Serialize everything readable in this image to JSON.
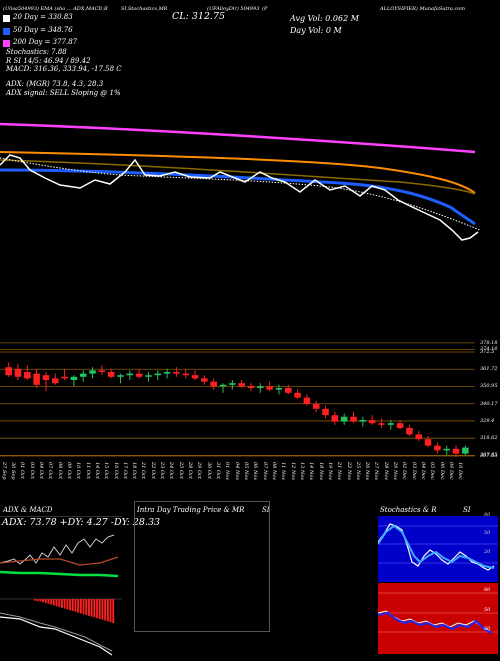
{
  "header": {
    "row1": "MunafaSutra ... ",
    "left_top": "(Ulisa504993) EMA (sho ... ADX,MACD,R",
    "mid_top": "SI,Stochastics,MR",
    "symbol_top": "(UFAlloyDir) 504993",
    "right_top": "(P",
    "far_right_top": "ALLOYSIFIER) MunafaSutra.com",
    "cl": "CL: 312.75",
    "avg_vol": "Avg Vol: 0.062  M",
    "day_vol": "Day Vol: 0   M",
    "ema20": "20  Day = 330.83",
    "ema50": "50  Day = 348.76",
    "ema200": "200  Day = 377.87",
    "stochastics": "Stochastics: 7.88",
    "rsi": "R         SI 14/5: 46.94 / 89.42",
    "macd": "MACD: 316.36, 333.94, -17.58  C",
    "adx": "ADX:                  (MGR) 73.8, 4.3, 28.3",
    "adx_signal": "ADX  signal: SELL Sloping @ 1%"
  },
  "colors": {
    "ema20": "#ffffff",
    "ema50": "#1e5eff",
    "ema100": "#ff8c00",
    "ema200": "#ff40ff",
    "up": "#22c55e",
    "down": "#ff2020",
    "level": "#8a5a00"
  },
  "price_levels": [
    "378.18",
    "374.16",
    "372.5",
    "361.72",
    "350.95",
    "340.17",
    "329.4",
    "318.62",
    "307.85",
    "307.53"
  ],
  "dates": [
    "27 Sep",
    "30 Sep",
    "01 Oct",
    "03 Oct",
    "04 Oct",
    "07 Oct",
    "08 Oct",
    "09 Oct",
    "10 Oct",
    "11 Oct",
    "14 Oct",
    "15 Oct",
    "16 Oct",
    "17 Oct",
    "18 Oct",
    "21 Oct",
    "22 Oct",
    "23 Oct",
    "24 Oct",
    "25 Oct",
    "28 Oct",
    "29 Oct",
    "30 Oct",
    "31 Oct",
    "01 Nov",
    "04 Nov",
    "05 Nov",
    "06 Nov",
    "07 Nov",
    "08 Nov",
    "11 Nov",
    "12 Nov",
    "13 Nov",
    "14 Nov",
    "18 Nov",
    "19 Nov",
    "21 Nov",
    "22 Nov",
    "25 Nov",
    "26 Nov",
    "27 Nov",
    "28 Nov",
    "29 Nov",
    "02 Dec",
    "03 Dec",
    "04 Dec",
    "05 Dec",
    "06 Dec",
    "09 Dec",
    "10 Dec"
  ],
  "panels": {
    "adx_title": "ADX  & MACD",
    "adx_values": "ADX: 73.78  +DY: 4.27  -DY: 28.33",
    "intra_title": "Intra  Day Trading Price  & MR",
    "intra_suffix": "SI",
    "stoch_title": "Stochastics & R",
    "stoch_suffix": "SI",
    "stoch_ticks": [
      "80",
      "50",
      "20"
    ],
    "rsi_ticks": [
      "80",
      "50",
      "20"
    ]
  },
  "chart_data": {
    "type": "candlestick",
    "ylim": [
      305,
      380
    ],
    "candles": [
      {
        "o": 363,
        "h": 366,
        "l": 357,
        "c": 358
      },
      {
        "o": 362,
        "h": 365,
        "l": 355,
        "c": 357
      },
      {
        "o": 360,
        "h": 364,
        "l": 355,
        "c": 356
      },
      {
        "o": 359,
        "h": 362,
        "l": 350,
        "c": 352
      },
      {
        "o": 358,
        "h": 360,
        "l": 348,
        "c": 355
      },
      {
        "o": 356,
        "h": 359,
        "l": 352,
        "c": 353
      },
      {
        "o": 357,
        "h": 362,
        "l": 355,
        "c": 356
      },
      {
        "o": 355,
        "h": 358,
        "l": 351,
        "c": 357
      },
      {
        "o": 357,
        "h": 361,
        "l": 354,
        "c": 359
      },
      {
        "o": 359,
        "h": 363,
        "l": 356,
        "c": 361
      },
      {
        "o": 361,
        "h": 364,
        "l": 358,
        "c": 360
      },
      {
        "o": 360,
        "h": 362,
        "l": 356,
        "c": 357
      },
      {
        "o": 357,
        "h": 359,
        "l": 353,
        "c": 358
      },
      {
        "o": 358,
        "h": 361,
        "l": 355,
        "c": 359
      },
      {
        "o": 359,
        "h": 362,
        "l": 356,
        "c": 357
      },
      {
        "o": 357,
        "h": 360,
        "l": 354,
        "c": 358
      },
      {
        "o": 358,
        "h": 361,
        "l": 355,
        "c": 359
      },
      {
        "o": 359,
        "h": 362,
        "l": 356,
        "c": 360
      },
      {
        "o": 360,
        "h": 363,
        "l": 357,
        "c": 359
      },
      {
        "o": 359,
        "h": 362,
        "l": 356,
        "c": 358
      },
      {
        "o": 358,
        "h": 361,
        "l": 355,
        "c": 356
      },
      {
        "o": 356,
        "h": 358,
        "l": 352,
        "c": 354
      },
      {
        "o": 354,
        "h": 356,
        "l": 349,
        "c": 351
      },
      {
        "o": 351,
        "h": 353,
        "l": 347,
        "c": 352
      },
      {
        "o": 352,
        "h": 355,
        "l": 349,
        "c": 353
      },
      {
        "o": 353,
        "h": 355,
        "l": 350,
        "c": 351
      },
      {
        "o": 351,
        "h": 353,
        "l": 348,
        "c": 350
      },
      {
        "o": 350,
        "h": 353,
        "l": 347,
        "c": 351
      },
      {
        "o": 351,
        "h": 354,
        "l": 348,
        "c": 349
      },
      {
        "o": 349,
        "h": 352,
        "l": 346,
        "c": 350
      },
      {
        "o": 350,
        "h": 352,
        "l": 346,
        "c": 347
      },
      {
        "o": 347,
        "h": 349,
        "l": 343,
        "c": 344
      },
      {
        "o": 344,
        "h": 346,
        "l": 339,
        "c": 340
      },
      {
        "o": 340,
        "h": 342,
        "l": 335,
        "c": 337
      },
      {
        "o": 337,
        "h": 339,
        "l": 331,
        "c": 333
      },
      {
        "o": 333,
        "h": 335,
        "l": 327,
        "c": 329
      },
      {
        "o": 329,
        "h": 334,
        "l": 327,
        "c": 332
      },
      {
        "o": 332,
        "h": 335,
        "l": 328,
        "c": 329
      },
      {
        "o": 329,
        "h": 332,
        "l": 326,
        "c": 330
      },
      {
        "o": 330,
        "h": 333,
        "l": 327,
        "c": 328
      },
      {
        "o": 328,
        "h": 331,
        "l": 325,
        "c": 327
      },
      {
        "o": 327,
        "h": 330,
        "l": 324,
        "c": 328
      },
      {
        "o": 328,
        "h": 330,
        "l": 324,
        "c": 325
      },
      {
        "o": 325,
        "h": 327,
        "l": 320,
        "c": 321
      },
      {
        "o": 321,
        "h": 323,
        "l": 317,
        "c": 318
      },
      {
        "o": 318,
        "h": 320,
        "l": 313,
        "c": 314
      },
      {
        "o": 314,
        "h": 316,
        "l": 309,
        "c": 311
      },
      {
        "o": 311,
        "h": 314,
        "l": 308,
        "c": 312
      },
      {
        "o": 312,
        "h": 314,
        "l": 307,
        "c": 309
      },
      {
        "o": 309,
        "h": 314,
        "l": 308,
        "c": 312.75
      }
    ]
  }
}
